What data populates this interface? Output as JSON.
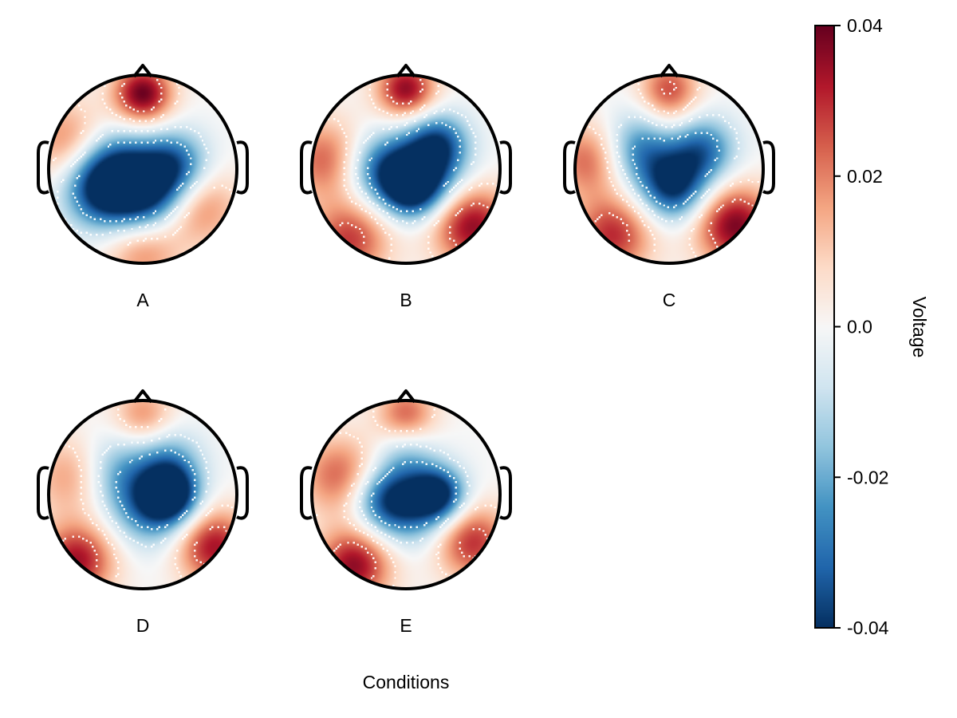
{
  "chart_data": {
    "type": "heatmap",
    "subtype": "eeg-topoplot-grid",
    "xlabel": "Conditions",
    "colorbar": {
      "label": "Voltage",
      "range": [
        -0.04,
        0.04
      ],
      "ticks": [
        0.04,
        0.02,
        0.0,
        -0.02,
        -0.04
      ],
      "tick_labels": [
        "0.04",
        "0.02",
        "0.0",
        "-0.02",
        "-0.04"
      ],
      "colormap": "RdBu reversed (blue = negative, red = positive)",
      "colors": [
        "#053061",
        "#2166ac",
        "#4393c3",
        "#92c5de",
        "#d1e5f0",
        "#f7f7f7",
        "#fddbc7",
        "#f4a582",
        "#d6604d",
        "#b2182b",
        "#67001f"
      ]
    },
    "panels": [
      {
        "label": "A",
        "blobs": [
          {
            "x": 0.0,
            "y": 0.8,
            "s": 0.22,
            "v": 0.04
          },
          {
            "x": 0.6,
            "y": -0.4,
            "s": 0.3,
            "v": 0.02
          },
          {
            "x": -0.8,
            "y": 0.3,
            "s": 0.3,
            "v": 0.02
          },
          {
            "x": 0.0,
            "y": -0.9,
            "s": 0.28,
            "v": 0.018
          },
          {
            "x": -0.3,
            "y": 0.0,
            "s": 0.3,
            "v": -0.03
          },
          {
            "x": 0.35,
            "y": 0.05,
            "s": 0.25,
            "v": -0.03
          },
          {
            "x": 0.05,
            "y": -0.25,
            "s": 0.28,
            "v": -0.038
          },
          {
            "x": -0.45,
            "y": -0.25,
            "s": 0.28,
            "v": -0.03
          }
        ]
      },
      {
        "label": "B",
        "blobs": [
          {
            "x": 0.0,
            "y": 0.85,
            "s": 0.22,
            "v": 0.036
          },
          {
            "x": 0.7,
            "y": -0.6,
            "s": 0.3,
            "v": 0.036
          },
          {
            "x": -0.6,
            "y": -0.75,
            "s": 0.3,
            "v": 0.028
          },
          {
            "x": -0.85,
            "y": 0.1,
            "s": 0.3,
            "v": 0.024
          },
          {
            "x": 0.2,
            "y": 0.0,
            "s": 0.3,
            "v": -0.034
          },
          {
            "x": -0.3,
            "y": 0.0,
            "s": 0.26,
            "v": -0.026
          },
          {
            "x": 0.05,
            "y": -0.2,
            "s": 0.22,
            "v": -0.036
          },
          {
            "x": 0.35,
            "y": 0.3,
            "s": 0.22,
            "v": -0.024
          }
        ]
      },
      {
        "label": "C",
        "blobs": [
          {
            "x": 0.0,
            "y": 0.85,
            "s": 0.22,
            "v": 0.026
          },
          {
            "x": -0.85,
            "y": 0.1,
            "s": 0.28,
            "v": 0.024
          },
          {
            "x": 0.7,
            "y": -0.6,
            "s": 0.3,
            "v": 0.038
          },
          {
            "x": -0.6,
            "y": -0.7,
            "s": 0.3,
            "v": 0.03
          },
          {
            "x": -0.3,
            "y": 0.2,
            "s": 0.28,
            "v": -0.028
          },
          {
            "x": 0.35,
            "y": 0.2,
            "s": 0.25,
            "v": -0.03
          },
          {
            "x": 0.05,
            "y": -0.2,
            "s": 0.25,
            "v": -0.038
          },
          {
            "x": 0.0,
            "y": 0.45,
            "s": 0.2,
            "v": 0.006
          }
        ]
      },
      {
        "label": "D",
        "blobs": [
          {
            "x": 0.0,
            "y": 0.85,
            "s": 0.22,
            "v": 0.018
          },
          {
            "x": -0.75,
            "y": 0.2,
            "s": 0.3,
            "v": 0.018
          },
          {
            "x": -0.7,
            "y": -0.7,
            "s": 0.28,
            "v": 0.034
          },
          {
            "x": 0.75,
            "y": -0.55,
            "s": 0.28,
            "v": 0.034
          },
          {
            "x": -0.3,
            "y": 0.25,
            "s": 0.28,
            "v": -0.018
          },
          {
            "x": 0.3,
            "y": 0.35,
            "s": 0.24,
            "v": -0.018
          },
          {
            "x": 0.1,
            "y": -0.1,
            "s": 0.3,
            "v": -0.032
          },
          {
            "x": 0.3,
            "y": 0.0,
            "s": 0.2,
            "v": -0.036
          }
        ]
      },
      {
        "label": "E",
        "blobs": [
          {
            "x": 0.0,
            "y": 0.85,
            "s": 0.22,
            "v": 0.024
          },
          {
            "x": -0.7,
            "y": 0.2,
            "s": 0.3,
            "v": 0.024
          },
          {
            "x": -0.55,
            "y": -0.75,
            "s": 0.28,
            "v": 0.036
          },
          {
            "x": 0.7,
            "y": -0.5,
            "s": 0.28,
            "v": 0.03
          },
          {
            "x": 0.0,
            "y": 0.45,
            "s": 0.22,
            "v": -0.012
          },
          {
            "x": 0.05,
            "y": -0.1,
            "s": 0.3,
            "v": -0.03
          },
          {
            "x": 0.35,
            "y": 0.0,
            "s": 0.2,
            "v": -0.036
          },
          {
            "x": -0.25,
            "y": -0.05,
            "s": 0.24,
            "v": -0.024
          }
        ]
      }
    ]
  }
}
